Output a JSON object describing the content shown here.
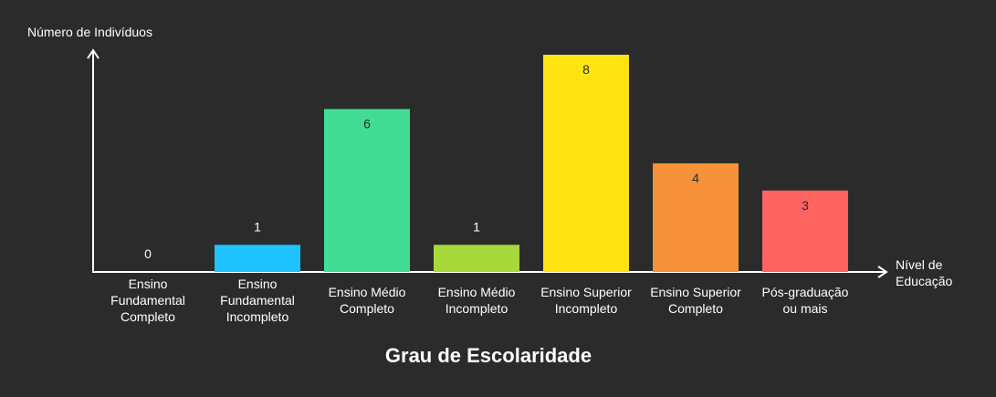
{
  "chart_data": {
    "type": "bar",
    "title": "Grau de Escolaridade",
    "ylabel": "Número de Indivíduos",
    "xlabel": [
      "Nível de",
      "Educação"
    ],
    "ylim": [
      0,
      8
    ],
    "categories": [
      [
        "Ensino",
        "Fundamental",
        "Completo"
      ],
      [
        "Ensino",
        "Fundamental",
        "Incompleto"
      ],
      [
        "Ensino Médio",
        "Completo"
      ],
      [
        "Ensino Médio",
        "Incompleto"
      ],
      [
        "Ensino Superior",
        "Incompleto"
      ],
      [
        "Ensino Superior",
        "Completo"
      ],
      [
        "Pós-graduação",
        "ou mais"
      ]
    ],
    "values": [
      0,
      1,
      6,
      1,
      8,
      4,
      3
    ],
    "colors": [
      "#9e9e9e",
      "#1ec3ff",
      "#43dc94",
      "#a8d93a",
      "#ffe412",
      "#f5923a",
      "#ff6461"
    ],
    "value_label_colors": [
      "#ffffff",
      "#ffffff",
      "#2b2b2b",
      "#ffffff",
      "#2b2b2b",
      "#2b2b2b",
      "#2b2b2b"
    ],
    "grid": false
  }
}
